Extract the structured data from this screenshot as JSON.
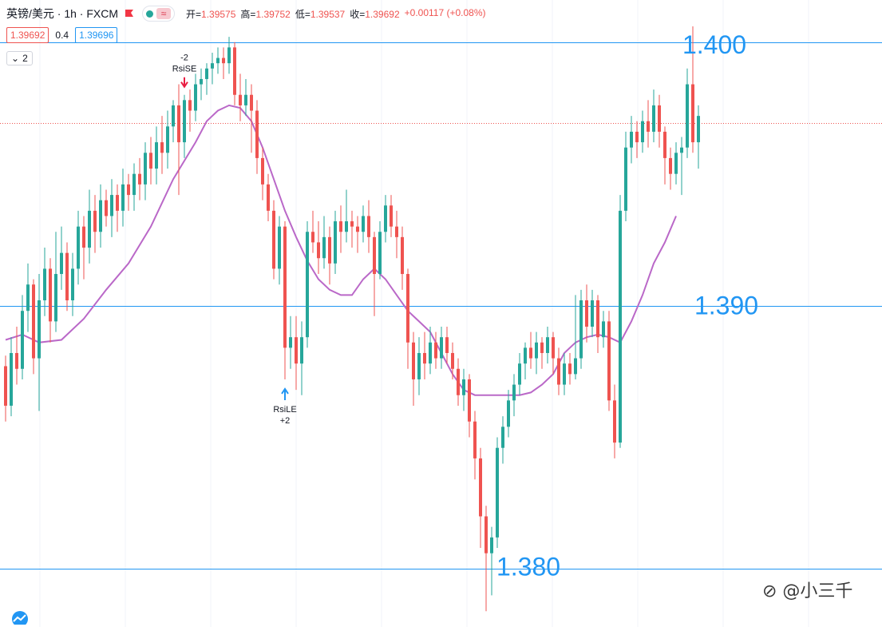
{
  "header": {
    "symbol": "英镑/美元 · 1h · FXCM",
    "ohlc": [
      {
        "label": "开=",
        "value": "1.39575"
      },
      {
        "label": "高=",
        "value": "1.39752"
      },
      {
        "label": "低=",
        "value": "1.39537"
      },
      {
        "label": "收=",
        "value": "1.39692"
      },
      {
        "label": "",
        "value": "+0.00117 (+0.08%)"
      }
    ],
    "bid": "1.39692",
    "spread": "0.4",
    "ask": "1.39696",
    "collapse_count": "2",
    "flag_icon": "flag-icon",
    "wave_icon_glyph": "≈"
  },
  "watermark": "⊘ @小三千",
  "colors": {
    "up": "#26a69a",
    "down": "#ef5350",
    "ma": "#ba68c8",
    "level": "#2196f3",
    "last_price": "#ef5350"
  },
  "chart_data": {
    "type": "candlestick",
    "instrument": "英镑/美元",
    "interval": "1h",
    "source": "FXCM",
    "ylim": [
      1.3778,
      1.4016
    ],
    "last_price": 1.39692,
    "levels": [
      {
        "value": 1.4,
        "label": "1.400"
      },
      {
        "value": 1.39,
        "label": "1.390"
      },
      {
        "value": 1.38,
        "label": "1.380"
      }
    ],
    "signals": [
      {
        "type": "short",
        "label": "RsiSE",
        "qty": "-2",
        "index": 32
      },
      {
        "type": "long",
        "label": "RsiLE",
        "qty": "+2",
        "index": 50
      }
    ],
    "candles": [
      [
        1.3877,
        1.3862,
        1.3881,
        1.3856
      ],
      [
        1.3862,
        1.3882,
        1.3888,
        1.3858
      ],
      [
        1.3882,
        1.3876,
        1.3892,
        1.387
      ],
      [
        1.3876,
        1.3898,
        1.3904,
        1.3872
      ],
      [
        1.3898,
        1.3908,
        1.3916,
        1.389
      ],
      [
        1.3908,
        1.388,
        1.391,
        1.3874
      ],
      [
        1.388,
        1.3902,
        1.3912,
        1.386
      ],
      [
        1.3902,
        1.3914,
        1.3922,
        1.3896
      ],
      [
        1.3914,
        1.3894,
        1.3918,
        1.3886
      ],
      [
        1.3894,
        1.3912,
        1.3928,
        1.389
      ],
      [
        1.3912,
        1.392,
        1.393,
        1.3906
      ],
      [
        1.392,
        1.3902,
        1.3924,
        1.3898
      ],
      [
        1.3902,
        1.3914,
        1.392,
        1.3896
      ],
      [
        1.3914,
        1.393,
        1.3936,
        1.3908
      ],
      [
        1.393,
        1.3922,
        1.3934,
        1.391
      ],
      [
        1.3922,
        1.3936,
        1.3944,
        1.3916
      ],
      [
        1.3936,
        1.3928,
        1.3942,
        1.392
      ],
      [
        1.3928,
        1.394,
        1.3946,
        1.3922
      ],
      [
        1.394,
        1.3934,
        1.3944,
        1.393
      ],
      [
        1.3934,
        1.3942,
        1.3948,
        1.3926
      ],
      [
        1.3942,
        1.3936,
        1.3946,
        1.3928
      ],
      [
        1.3936,
        1.3946,
        1.3952,
        1.393
      ],
      [
        1.3946,
        1.3942,
        1.395,
        1.3936
      ],
      [
        1.3942,
        1.395,
        1.3954,
        1.3936
      ],
      [
        1.395,
        1.3946,
        1.3956,
        1.394
      ],
      [
        1.3946,
        1.3958,
        1.3962,
        1.394
      ],
      [
        1.3958,
        1.3952,
        1.3964,
        1.3946
      ],
      [
        1.3952,
        1.3962,
        1.3968,
        1.3946
      ],
      [
        1.3962,
        1.3958,
        1.3972,
        1.395
      ],
      [
        1.3958,
        1.3968,
        1.3974,
        1.3952
      ],
      [
        1.3968,
        1.3976,
        1.3978,
        1.3962
      ],
      [
        1.3976,
        1.3962,
        1.3984,
        1.3942
      ],
      [
        1.3962,
        1.3978,
        1.398,
        1.3956
      ],
      [
        1.3978,
        1.3974,
        1.3982,
        1.3966
      ],
      [
        1.3974,
        1.3984,
        1.3988,
        1.397
      ],
      [
        1.3984,
        1.3986,
        1.399,
        1.3978
      ],
      [
        1.3986,
        1.399,
        1.3992,
        1.398
      ],
      [
        1.399,
        1.3992,
        1.3996,
        1.3984
      ],
      [
        1.3992,
        1.3994,
        1.3998,
        1.3988
      ],
      [
        1.3994,
        1.3992,
        1.3998,
        1.3986
      ],
      [
        1.3992,
        1.3998,
        1.4002,
        1.3988
      ],
      [
        1.3998,
        1.398,
        1.4,
        1.3976
      ],
      [
        1.398,
        1.3976,
        1.3988,
        1.397
      ],
      [
        1.3976,
        1.398,
        1.3986,
        1.3972
      ],
      [
        1.398,
        1.3974,
        1.3984,
        1.3958
      ],
      [
        1.3974,
        1.3956,
        1.3978,
        1.395
      ],
      [
        1.3956,
        1.3946,
        1.396,
        1.394
      ],
      [
        1.3946,
        1.3936,
        1.395,
        1.3932
      ],
      [
        1.3936,
        1.3914,
        1.394,
        1.391
      ],
      [
        1.3914,
        1.393,
        1.3934,
        1.3908
      ],
      [
        1.393,
        1.3884,
        1.3932,
        1.3872
      ],
      [
        1.3884,
        1.3888,
        1.3896,
        1.3876
      ],
      [
        1.3888,
        1.3878,
        1.3896,
        1.3868
      ],
      [
        1.3878,
        1.3888,
        1.3894,
        1.3866
      ],
      [
        1.3888,
        1.3928,
        1.3932,
        1.3884
      ],
      [
        1.3928,
        1.3924,
        1.3936,
        1.392
      ],
      [
        1.3924,
        1.3918,
        1.3932,
        1.3912
      ],
      [
        1.3918,
        1.3926,
        1.3934,
        1.3914
      ],
      [
        1.3926,
        1.3916,
        1.393,
        1.3908
      ],
      [
        1.3916,
        1.3932,
        1.3936,
        1.3912
      ],
      [
        1.3932,
        1.3928,
        1.3938,
        1.392
      ],
      [
        1.3928,
        1.3932,
        1.3944,
        1.3924
      ],
      [
        1.3932,
        1.393,
        1.3936,
        1.3922
      ],
      [
        1.393,
        1.3928,
        1.3934,
        1.392
      ],
      [
        1.3928,
        1.3934,
        1.3938,
        1.3924
      ],
      [
        1.3934,
        1.3926,
        1.394,
        1.392
      ],
      [
        1.3926,
        1.3912,
        1.3928,
        1.3896
      ],
      [
        1.3912,
        1.3928,
        1.3932,
        1.391
      ],
      [
        1.3928,
        1.3938,
        1.3942,
        1.3924
      ],
      [
        1.3938,
        1.393,
        1.3942,
        1.3926
      ],
      [
        1.393,
        1.3926,
        1.3936,
        1.3918
      ],
      [
        1.3926,
        1.3912,
        1.393,
        1.3906
      ],
      [
        1.3912,
        1.3886,
        1.3914,
        1.3876
      ],
      [
        1.3886,
        1.3872,
        1.389,
        1.3862
      ],
      [
        1.3872,
        1.3882,
        1.3888,
        1.3866
      ],
      [
        1.3882,
        1.3878,
        1.389,
        1.3872
      ],
      [
        1.3878,
        1.3886,
        1.3892,
        1.3874
      ],
      [
        1.3886,
        1.388,
        1.389,
        1.3876
      ],
      [
        1.388,
        1.3888,
        1.3892,
        1.3876
      ],
      [
        1.3888,
        1.3882,
        1.3892,
        1.3878
      ],
      [
        1.3882,
        1.3876,
        1.3886,
        1.3872
      ],
      [
        1.3876,
        1.3866,
        1.388,
        1.3862
      ],
      [
        1.3866,
        1.3872,
        1.3876,
        1.386
      ],
      [
        1.3872,
        1.3856,
        1.3874,
        1.385
      ],
      [
        1.3856,
        1.3842,
        1.386,
        1.3834
      ],
      [
        1.3842,
        1.382,
        1.3846,
        1.3808
      ],
      [
        1.382,
        1.3806,
        1.3824,
        1.3784
      ],
      [
        1.3806,
        1.3812,
        1.3816,
        1.379
      ],
      [
        1.3812,
        1.3846,
        1.385,
        1.3808
      ],
      [
        1.3846,
        1.3854,
        1.3858,
        1.384
      ],
      [
        1.3854,
        1.3864,
        1.3868,
        1.385
      ],
      [
        1.3864,
        1.387,
        1.3874,
        1.3858
      ],
      [
        1.387,
        1.3878,
        1.3882,
        1.3866
      ],
      [
        1.3878,
        1.3884,
        1.3886,
        1.3872
      ],
      [
        1.3884,
        1.388,
        1.389,
        1.3876
      ],
      [
        1.388,
        1.3886,
        1.389,
        1.3874
      ],
      [
        1.3886,
        1.3882,
        1.3888,
        1.3876
      ],
      [
        1.3882,
        1.3888,
        1.3892,
        1.3878
      ],
      [
        1.3888,
        1.388,
        1.389,
        1.3874
      ],
      [
        1.388,
        1.387,
        1.3884,
        1.3866
      ],
      [
        1.387,
        1.3878,
        1.3882,
        1.3866
      ],
      [
        1.3878,
        1.3874,
        1.3882,
        1.387
      ],
      [
        1.3874,
        1.388,
        1.3904,
        1.3872
      ],
      [
        1.388,
        1.3902,
        1.3906,
        1.3876
      ],
      [
        1.3902,
        1.3892,
        1.3908,
        1.3886
      ],
      [
        1.3892,
        1.3902,
        1.3906,
        1.3888
      ],
      [
        1.3902,
        1.3888,
        1.3904,
        1.3882
      ],
      [
        1.3888,
        1.3894,
        1.3898,
        1.3884
      ],
      [
        1.3894,
        1.3864,
        1.3898,
        1.386
      ],
      [
        1.3864,
        1.3848,
        1.387,
        1.3842
      ],
      [
        1.3848,
        1.3936,
        1.3942,
        1.3846
      ],
      [
        1.3936,
        1.396,
        1.3966,
        1.3932
      ],
      [
        1.396,
        1.3966,
        1.3972,
        1.3954
      ],
      [
        1.3966,
        1.3962,
        1.397,
        1.3956
      ],
      [
        1.3962,
        1.397,
        1.3974,
        1.3958
      ],
      [
        1.397,
        1.3966,
        1.3978,
        1.396
      ],
      [
        1.3966,
        1.3976,
        1.3982,
        1.3962
      ],
      [
        1.3976,
        1.3966,
        1.398,
        1.396
      ],
      [
        1.3966,
        1.3956,
        1.3968,
        1.3946
      ],
      [
        1.3956,
        1.395,
        1.396,
        1.3944
      ],
      [
        1.395,
        1.3958,
        1.3962,
        1.3946
      ],
      [
        1.3958,
        1.396,
        1.3964,
        1.3942
      ],
      [
        1.396,
        1.3984,
        1.399,
        1.3956
      ],
      [
        1.3984,
        1.3962,
        1.4006,
        1.3958
      ],
      [
        1.3962,
        1.3972,
        1.3976,
        1.3952
      ]
    ],
    "ma_points": [
      [
        0,
        1.3887
      ],
      [
        3,
        1.3889
      ],
      [
        6,
        1.3886
      ],
      [
        10,
        1.3887
      ],
      [
        14,
        1.3895
      ],
      [
        18,
        1.3906
      ],
      [
        22,
        1.3916
      ],
      [
        26,
        1.393
      ],
      [
        30,
        1.3948
      ],
      [
        34,
        1.3962
      ],
      [
        36,
        1.397
      ],
      [
        38,
        1.3974
      ],
      [
        40,
        1.3976
      ],
      [
        42,
        1.3975
      ],
      [
        44,
        1.397
      ],
      [
        46,
        1.396
      ],
      [
        48,
        1.3948
      ],
      [
        50,
        1.3936
      ],
      [
        52,
        1.3926
      ],
      [
        54,
        1.3917
      ],
      [
        56,
        1.391
      ],
      [
        58,
        1.3906
      ],
      [
        60,
        1.3904
      ],
      [
        62,
        1.3904
      ],
      [
        64,
        1.391
      ],
      [
        66,
        1.3914
      ],
      [
        68,
        1.391
      ],
      [
        70,
        1.3904
      ],
      [
        72,
        1.3898
      ],
      [
        74,
        1.3894
      ],
      [
        76,
        1.389
      ],
      [
        78,
        1.3882
      ],
      [
        80,
        1.3874
      ],
      [
        82,
        1.3868
      ],
      [
        84,
        1.3866
      ],
      [
        86,
        1.3866
      ],
      [
        88,
        1.3866
      ],
      [
        90,
        1.3866
      ],
      [
        92,
        1.3866
      ],
      [
        94,
        1.3867
      ],
      [
        96,
        1.387
      ],
      [
        98,
        1.3874
      ],
      [
        100,
        1.3882
      ],
      [
        102,
        1.3886
      ],
      [
        104,
        1.3888
      ],
      [
        106,
        1.3889
      ],
      [
        108,
        1.3888
      ],
      [
        110,
        1.3886
      ],
      [
        112,
        1.3894
      ],
      [
        114,
        1.3904
      ],
      [
        116,
        1.3916
      ],
      [
        118,
        1.3924
      ],
      [
        120,
        1.3934
      ]
    ]
  }
}
